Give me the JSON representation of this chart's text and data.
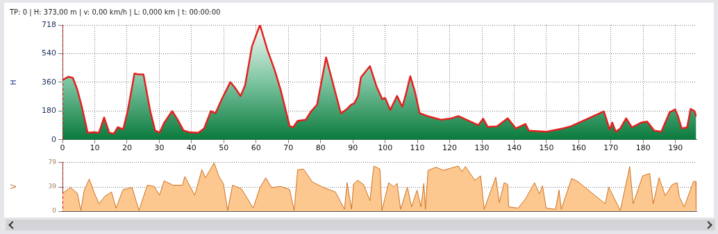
{
  "chart_data": [
    {
      "type": "area",
      "title": "TP: 0 | H: 373,00 m | v: 0,00 km/h | L: 0,000 km | t: 00:00:00",
      "ylabel": "H",
      "xlim": [
        0,
        196.5
      ],
      "ylim": [
        0,
        718
      ],
      "xticks": [
        0,
        10,
        20,
        30,
        40,
        50,
        60,
        70,
        80,
        90,
        100,
        110,
        120,
        130,
        140,
        150,
        160,
        170,
        180,
        190
      ],
      "yticks": [
        0,
        180,
        360,
        540,
        718
      ],
      "grid": true,
      "ref_lines": [
        {
          "axis": "x",
          "value": 0,
          "color": "#cc0000",
          "line_style": "dashed"
        }
      ],
      "series": [
        {
          "color": "#e52020",
          "x": [
            0,
            1.8,
            3.2,
            4.6,
            6,
            7.8,
            9.6,
            11.3,
            12.9,
            14.5,
            15.9,
            17.1,
            18.8,
            20.2,
            22.3,
            23.7,
            25.1,
            27.2,
            28.7,
            30.1,
            31.5,
            34,
            35.7,
            37.5,
            39.3,
            42.1,
            43.9,
            46,
            47.4,
            49.2,
            52,
            53.4,
            55.2,
            56.6,
            58.7,
            61.2,
            63.6,
            65.8,
            67.6,
            70.4,
            71.5,
            72.9,
            75.4,
            77.1,
            78.9,
            81.7,
            83.8,
            86.3,
            88.2,
            89.5,
            90.4,
            91.6,
            92.5,
            95.3,
            97.3,
            99.1,
            100,
            101.6,
            103.7,
            105.3,
            106.4,
            107.8,
            109.3,
            110.7,
            113.6,
            117.3,
            120.2,
            122.7,
            126,
            128.9,
            130.4,
            131.8,
            134.7,
            138,
            140.5,
            143.5,
            144.5,
            150,
            155.1,
            157.6,
            167.8,
            169.6,
            170.4,
            171.5,
            172.9,
            174.7,
            176.5,
            179.1,
            181.2,
            183.4,
            185.6,
            188.2,
            189.9,
            190.8,
            191.9,
            193.6,
            194.7,
            195.9,
            196.4
          ],
          "values": [
            373,
            394,
            387,
            313,
            206,
            44,
            47,
            44,
            139,
            44,
            38,
            78,
            65,
            179,
            414,
            408,
            408,
            179,
            58,
            44,
            105,
            179,
            125,
            58,
            47,
            44,
            71,
            179,
            165,
            246,
            360,
            327,
            273,
            340,
            582,
            718,
            556,
            434,
            313,
            85,
            78,
            118,
            125,
            179,
            219,
            515,
            354,
            165,
            193,
            219,
            227,
            273,
            390,
            460,
            335,
            254,
            261,
            186,
            274,
            206,
            281,
            397,
            295,
            166,
            145,
            125,
            132,
            148,
            118,
            91,
            132,
            80,
            84,
            134,
            71,
            98,
            57,
            50,
            71,
            84,
            177,
            64,
            107,
            50,
            71,
            134,
            77,
            105,
            114,
            57,
            50,
            172,
            189,
            145,
            71,
            77,
            193,
            179,
            145
          ]
        }
      ]
    },
    {
      "type": "area",
      "ylabel": "V",
      "xlim": [
        0,
        196.5
      ],
      "ylim": [
        0,
        79
      ],
      "yticks": [
        0,
        39,
        79
      ],
      "grid": "y",
      "tick_labels": "y",
      "ref_lines": [
        {
          "axis": "x",
          "value": 0,
          "color": "#cc0000",
          "line_style": "dashed"
        }
      ],
      "series": [
        {
          "color": "#d07020",
          "x": [
            0,
            2.5,
            4.6,
            5.7,
            6.7,
            8.3,
            9.9,
            11.3,
            13.1,
            15.2,
            16.6,
            18.8,
            21.6,
            23.7,
            26.3,
            28.4,
            30.1,
            31.5,
            34.3,
            37.2,
            37.9,
            41,
            43.2,
            44.3,
            47,
            48.5,
            49.9,
            51.2,
            52.7,
            55.5,
            59.1,
            61.2,
            63,
            64.8,
            67.6,
            70.4,
            71.8,
            72.9,
            74.7,
            77.5,
            81,
            84.6,
            87.4,
            88.2,
            89.6,
            90.2,
            91.5,
            93.3,
            95.3,
            96.5,
            98.4,
            99,
            101.1,
            102.7,
            103.7,
            104.8,
            106.9,
            108.2,
            109.9,
            111.1,
            112,
            112.5,
            113.3,
            115.8,
            118,
            122.7,
            123.8,
            124.9,
            127.8,
            129.6,
            130.7,
            134.3,
            135.4,
            136.9,
            138,
            138.3,
            141.2,
            143.4,
            146.3,
            147.8,
            148.8,
            149.9,
            152.8,
            153.9,
            154.6,
            157.8,
            159.7,
            168.2,
            169.3,
            172.9,
            175.8,
            176.9,
            179.8,
            182,
            183.1,
            184.9,
            186.8,
            189,
            190.5,
            191.2,
            192.7,
            195.6,
            196.3,
            196.4
          ],
          "values": [
            29,
            38,
            29,
            1,
            33,
            52,
            29,
            12,
            24,
            31,
            5,
            35,
            38,
            1,
            42,
            40,
            26,
            49,
            42,
            42,
            56,
            26,
            67,
            54,
            78,
            56,
            44,
            1,
            42,
            36,
            5,
            38,
            54,
            38,
            40,
            35,
            1,
            67,
            68,
            47,
            38,
            31,
            3,
            46,
            3,
            44,
            50,
            43,
            17,
            73,
            68,
            1,
            46,
            39,
            45,
            3,
            39,
            7,
            34,
            7,
            45,
            3,
            66,
            71,
            66,
            73,
            64,
            72,
            50,
            57,
            3,
            55,
            14,
            46,
            43,
            7,
            5,
            19,
            46,
            28,
            41,
            5,
            3,
            34,
            3,
            53,
            48,
            12,
            39,
            1,
            72,
            12,
            57,
            61,
            12,
            54,
            25,
            43,
            46,
            23,
            7,
            48,
            48,
            1
          ]
        }
      ]
    }
  ]
}
